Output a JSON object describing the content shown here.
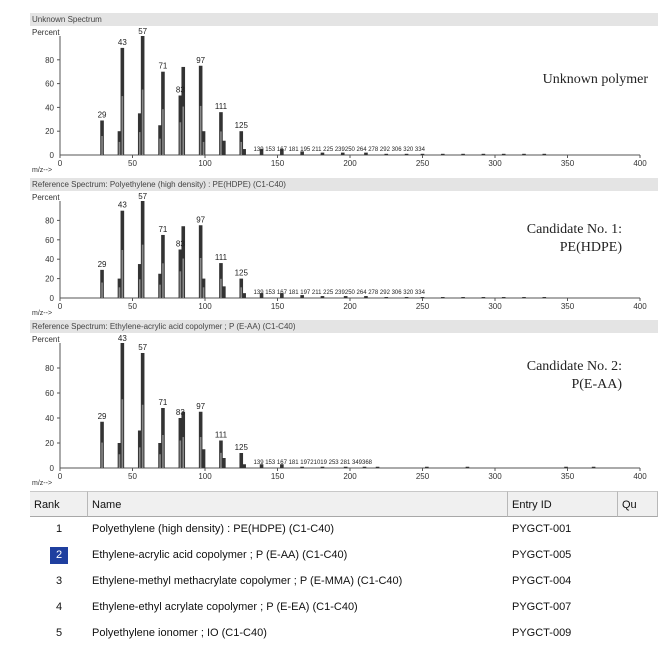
{
  "spectra": [
    {
      "title": "Unknown Spectrum",
      "annotation": [
        "Unknown polymer"
      ],
      "peaks": [
        [
          29,
          29
        ],
        [
          41,
          20
        ],
        [
          43,
          90
        ],
        [
          55,
          35
        ],
        [
          57,
          100
        ],
        [
          69,
          25
        ],
        [
          71,
          70
        ],
        [
          83,
          50
        ],
        [
          85,
          74
        ],
        [
          97,
          75
        ],
        [
          99,
          20
        ],
        [
          111,
          36
        ],
        [
          113,
          12
        ],
        [
          125,
          20
        ],
        [
          127,
          5
        ],
        [
          139,
          5
        ],
        [
          153,
          5
        ],
        [
          167,
          3
        ],
        [
          181,
          2
        ],
        [
          195,
          2
        ],
        [
          211,
          2
        ],
        [
          225,
          1
        ],
        [
          239,
          1
        ],
        [
          250,
          1
        ],
        [
          264,
          1
        ],
        [
          278,
          1
        ],
        [
          292,
          1
        ],
        [
          306,
          1
        ],
        [
          320,
          1
        ],
        [
          334,
          1
        ]
      ],
      "labels": [
        [
          29,
          "29"
        ],
        [
          43,
          "43"
        ],
        [
          57,
          "57"
        ],
        [
          71,
          "71"
        ],
        [
          83,
          "83"
        ],
        [
          97,
          "97"
        ],
        [
          111,
          "111"
        ],
        [
          125,
          "125"
        ]
      ],
      "small_labels": "139 153 167 181 195 211 225 239250 264 278 292 306 320 334"
    },
    {
      "title": "Reference Spectrum: Polyethylene (high density) : PE(HDPE)  (C1-C40)",
      "annotation": [
        "Candidate No. 1:",
        "PE(HDPE)"
      ],
      "peaks": [
        [
          29,
          29
        ],
        [
          41,
          20
        ],
        [
          43,
          90
        ],
        [
          55,
          35
        ],
        [
          57,
          100
        ],
        [
          69,
          25
        ],
        [
          71,
          65
        ],
        [
          83,
          50
        ],
        [
          85,
          74
        ],
        [
          97,
          75
        ],
        [
          99,
          20
        ],
        [
          111,
          36
        ],
        [
          113,
          12
        ],
        [
          125,
          20
        ],
        [
          127,
          5
        ],
        [
          139,
          5
        ],
        [
          153,
          5
        ],
        [
          167,
          3
        ],
        [
          181,
          2
        ],
        [
          197,
          2
        ],
        [
          211,
          2
        ],
        [
          225,
          1
        ],
        [
          239,
          1
        ],
        [
          250,
          1
        ],
        [
          264,
          1
        ],
        [
          278,
          1
        ],
        [
          292,
          1
        ],
        [
          306,
          1
        ],
        [
          320,
          1
        ],
        [
          334,
          1
        ]
      ],
      "labels": [
        [
          29,
          "29"
        ],
        [
          43,
          "43"
        ],
        [
          57,
          "57"
        ],
        [
          71,
          "71"
        ],
        [
          83,
          "83"
        ],
        [
          97,
          "97"
        ],
        [
          111,
          "111"
        ],
        [
          125,
          "125"
        ]
      ],
      "small_labels": "139 153 167 181 197 211 225 239250 264 278 292 306 320 334"
    },
    {
      "title": "Reference Spectrum: Ethylene-acrylic acid copolymer ; P (E-AA)  (C1-C40)",
      "annotation": [
        "Candidate No. 2:",
        "P(E-AA)"
      ],
      "peaks": [
        [
          29,
          37
        ],
        [
          41,
          20
        ],
        [
          43,
          100
        ],
        [
          55,
          30
        ],
        [
          57,
          92
        ],
        [
          69,
          20
        ],
        [
          71,
          48
        ],
        [
          83,
          40
        ],
        [
          85,
          45
        ],
        [
          97,
          45
        ],
        [
          99,
          15
        ],
        [
          111,
          22
        ],
        [
          113,
          8
        ],
        [
          125,
          12
        ],
        [
          127,
          3
        ],
        [
          139,
          3
        ],
        [
          153,
          3
        ],
        [
          167,
          1
        ],
        [
          181,
          1
        ],
        [
          197,
          1
        ],
        [
          210,
          1
        ],
        [
          219,
          1
        ],
        [
          253,
          1
        ],
        [
          281,
          1
        ],
        [
          349,
          1
        ],
        [
          368,
          1
        ]
      ],
      "labels": [
        [
          29,
          "29"
        ],
        [
          43,
          "43"
        ],
        [
          57,
          "57"
        ],
        [
          71,
          "71"
        ],
        [
          83,
          "83"
        ],
        [
          97,
          "97"
        ],
        [
          111,
          "111"
        ],
        [
          125,
          "125"
        ]
      ],
      "small_labels": "139 153 167 181 19721019   253   281   349368"
    }
  ],
  "axis": {
    "y_label": "Percent",
    "x_label": "m/z-->",
    "x_ticks": [
      "0",
      "50",
      "100",
      "150",
      "200",
      "250",
      "300",
      "350",
      "400"
    ],
    "y_ticks": [
      "20",
      "40",
      "60",
      "80"
    ],
    "x_range": [
      0,
      400
    ]
  },
  "table": {
    "columns": [
      "Rank",
      "Name",
      "Entry ID",
      "Qu"
    ],
    "rows": [
      {
        "rank": "1",
        "name": "Polyethylene (high density) : PE(HDPE)   (C1-C40)",
        "id": "PYGCT-001",
        "selected": false
      },
      {
        "rank": "2",
        "name": "Ethylene-acrylic acid copolymer ; P (E-AA)   (C1-C40)",
        "id": "PYGCT-005",
        "selected": true
      },
      {
        "rank": "3",
        "name": "Ethylene-methyl methacrylate copolymer ; P (E-MMA)   (C1-C40)",
        "id": "PYGCT-004",
        "selected": false
      },
      {
        "rank": "4",
        "name": "Ethylene-ethyl acrylate copolymer ; P (E-EA)   (C1-C40)",
        "id": "PYGCT-007",
        "selected": false
      },
      {
        "rank": "5",
        "name": "Polyethylene ionomer ; IO   (C1-C40)",
        "id": "PYGCT-009",
        "selected": false
      }
    ]
  },
  "colors": {
    "bar": "#333333",
    "bar_inner": "#888888",
    "title_bg": "#e4e4e4",
    "selection": "#1f3f9f"
  }
}
